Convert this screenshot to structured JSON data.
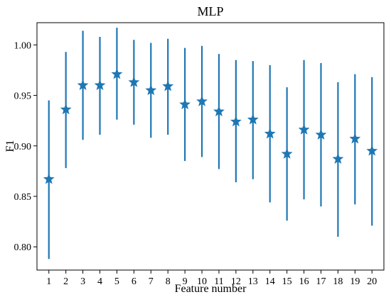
{
  "chart_data": {
    "type": "scatter",
    "title": "MLP",
    "xlabel": "Feature number",
    "ylabel": "F1",
    "x": [
      1,
      2,
      3,
      4,
      5,
      6,
      7,
      8,
      9,
      10,
      11,
      12,
      13,
      14,
      15,
      16,
      17,
      18,
      19,
      20
    ],
    "series": [
      {
        "values": [
          0.867,
          0.936,
          0.96,
          0.96,
          0.971,
          0.963,
          0.955,
          0.959,
          0.941,
          0.944,
          0.934,
          0.924,
          0.926,
          0.912,
          0.892,
          0.916,
          0.911,
          0.887,
          0.907,
          0.895
        ],
        "lower": [
          0.788,
          0.878,
          0.906,
          0.911,
          0.926,
          0.921,
          0.908,
          0.911,
          0.885,
          0.889,
          0.877,
          0.864,
          0.867,
          0.844,
          0.826,
          0.847,
          0.84,
          0.81,
          0.842,
          0.821
        ],
        "upper": [
          0.945,
          0.993,
          1.014,
          1.008,
          1.017,
          1.005,
          1.002,
          1.006,
          0.997,
          0.999,
          0.991,
          0.985,
          0.984,
          0.98,
          0.958,
          0.985,
          0.982,
          0.963,
          0.971,
          0.968
        ]
      }
    ],
    "xticks": [
      "1",
      "2",
      "3",
      "4",
      "5",
      "6",
      "7",
      "8",
      "9",
      "10",
      "11",
      "12",
      "13",
      "14",
      "15",
      "16",
      "17",
      "18",
      "19",
      "20"
    ],
    "yticks": [
      "0.80",
      "0.85",
      "0.90",
      "0.95",
      "1.00"
    ],
    "ytick_values": [
      0.8,
      0.85,
      0.9,
      0.95,
      1.0
    ],
    "xlim": [
      0.3,
      20.7
    ],
    "ylim": [
      0.777,
      1.022
    ],
    "grid": false,
    "marker": "star",
    "color": "#1f77b4",
    "axis_color": "#000000"
  }
}
